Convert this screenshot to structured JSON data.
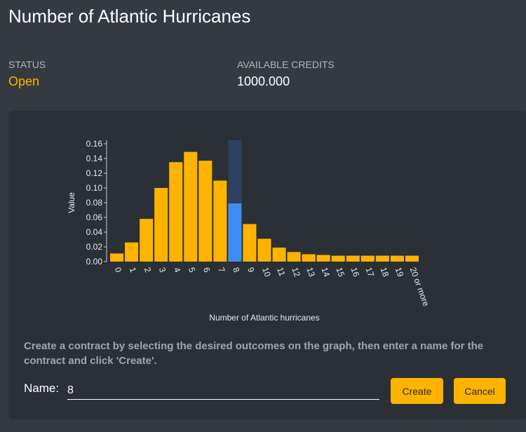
{
  "header": {
    "title": "Number of Atlantic Hurricanes"
  },
  "status": {
    "label": "STATUS",
    "value": "Open"
  },
  "credits": {
    "label": "AVAILABLE CREDITS",
    "value": "1000.000"
  },
  "colors": {
    "accent": "#ffb300",
    "selected": "#3d8ef0",
    "selected_band": "#2e4160"
  },
  "chart_data": {
    "type": "bar",
    "categories": [
      "0",
      "1",
      "2",
      "3",
      "4",
      "5",
      "6",
      "7",
      "8",
      "9",
      "10",
      "11",
      "12",
      "13",
      "14",
      "15",
      "16",
      "17",
      "18",
      "19",
      "20 or more"
    ],
    "values": [
      0.011,
      0.026,
      0.058,
      0.1,
      0.135,
      0.149,
      0.137,
      0.11,
      0.079,
      0.051,
      0.031,
      0.019,
      0.013,
      0.01,
      0.009,
      0.008,
      0.008,
      0.008,
      0.008,
      0.008,
      0.008
    ],
    "selected_index": 8,
    "xlabel": "Number of Atlantic hurricanes",
    "ylabel": "Value",
    "ylim": [
      0,
      0.16
    ],
    "yticks": [
      "0.00",
      "0.02",
      "0.04",
      "0.06",
      "0.08",
      "0.10",
      "0.12",
      "0.14",
      "0.16"
    ],
    "grid": false
  },
  "form": {
    "instructions": "Create a contract by selecting the desired outcomes on the graph, then enter a name for the contract and click 'Create'.",
    "name_label": "Name:",
    "name_value": "8",
    "create_label": "Create",
    "cancel_label": "Cancel"
  }
}
